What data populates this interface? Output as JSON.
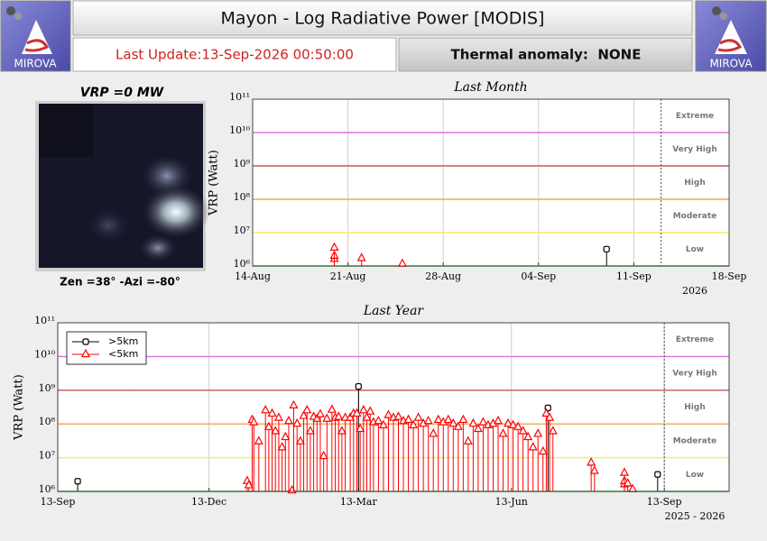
{
  "header": {
    "title": "Mayon - Log Radiative Power [MODIS]",
    "last_update": "Last Update:13-Sep-2026 00:50:00",
    "thermal_anomaly": "Thermal anomaly:  NONE",
    "logo_text": "MIROVA"
  },
  "thumbnail": {
    "vrp": "VRP =0 MW",
    "angles": "Zen =38° -Azi =-80°"
  },
  "chart_data": [
    {
      "type": "stem",
      "title": "Last Month",
      "ylabel": "VRP (Watt)",
      "xlabel": "2026",
      "log_y": true,
      "xlim": [
        "2026-08-14",
        "2026-09-18"
      ],
      "xticks": [
        {
          "value": "2026-08-14",
          "label": "14-Aug"
        },
        {
          "value": "2026-08-21",
          "label": "21-Aug"
        },
        {
          "value": "2026-08-28",
          "label": "28-Aug"
        },
        {
          "value": "2026-09-04",
          "label": "04-Sep"
        },
        {
          "value": "2026-09-11",
          "label": "11-Sep"
        },
        {
          "value": "2026-09-18",
          "label": "18-Sep"
        }
      ],
      "ylim": [
        1000000.0,
        100000000000.0
      ],
      "yticks": [
        {
          "value": 1000000.0,
          "label": "10⁶"
        },
        {
          "value": 10000000.0,
          "label": "10⁷"
        },
        {
          "value": 100000000.0,
          "label": "10⁸"
        },
        {
          "value": 1000000000.0,
          "label": "10⁹"
        },
        {
          "value": 10000000000.0,
          "label": "10¹⁰"
        },
        {
          "value": 100000000000.0,
          "label": "10¹¹"
        }
      ],
      "now": "2026-09-13",
      "levels": [
        {
          "name": "Low",
          "from": 1000000.0,
          "color": "#33cc33"
        },
        {
          "name": "Moderate",
          "from": 10000000.0,
          "color": "#f0f060"
        },
        {
          "name": "High",
          "from": 100000000.0,
          "color": "#f0a850"
        },
        {
          "name": "Very High",
          "from": 1000000000.0,
          "color": "#cc5555"
        },
        {
          "name": "Extreme",
          "from": 10000000000.0,
          "color": "#e070e0"
        }
      ],
      "series": [
        {
          "color": "#000000",
          "marker": "square",
          "x": [
            "2026-09-09"
          ],
          "values": [
            3200000.0
          ]
        },
        {
          "color": "#ff0000",
          "marker": "triangle",
          "x": [
            "2026-08-20",
            "2026-08-20",
            "2026-08-20",
            "2026-08-22",
            "2026-08-25"
          ],
          "values": [
            1600000.0,
            2000000.0,
            3500000.0,
            1700000.0,
            1150000.0
          ]
        }
      ]
    },
    {
      "type": "stem",
      "title": "Last Year",
      "ylabel": "VRP (Watt)",
      "xlabel": "2025 - 2026",
      "log_y": true,
      "legend": "upper left",
      "xlim": [
        "2025-09-13",
        "2026-10-22"
      ],
      "xticks": [
        {
          "value": "2025-09-13",
          "label": "13-Sep"
        },
        {
          "value": "2025-12-13",
          "label": "13-Dec"
        },
        {
          "value": "2026-03-13",
          "label": "13-Mar"
        },
        {
          "value": "2026-06-13",
          "label": "13-Jun"
        },
        {
          "value": "2026-09-13",
          "label": "13-Sep"
        }
      ],
      "ylim": [
        1000000.0,
        100000000000.0
      ],
      "yticks": [
        {
          "value": 1000000.0,
          "label": "10⁶"
        },
        {
          "value": 10000000.0,
          "label": "10⁷"
        },
        {
          "value": 100000000.0,
          "label": "10⁸"
        },
        {
          "value": 1000000000.0,
          "label": "10⁹"
        },
        {
          "value": 10000000000.0,
          "label": "10¹⁰"
        },
        {
          "value": 100000000000.0,
          "label": "10¹¹"
        }
      ],
      "now": "2026-09-13",
      "levels": [
        {
          "name": "Low",
          "from": 1000000.0,
          "color": "#33cc33"
        },
        {
          "name": "Moderate",
          "from": 10000000.0,
          "color": "#f0f060"
        },
        {
          "name": "High",
          "from": 100000000.0,
          "color": "#f0a850"
        },
        {
          "name": "Very High",
          "from": 1000000000.0,
          "color": "#cc5555"
        },
        {
          "name": "Extreme",
          "from": 10000000000.0,
          "color": "#e070e0"
        }
      ],
      "series": [
        {
          "name": ">5km",
          "color": "#000000",
          "marker": "square",
          "x": [
            "2025-09-25",
            "2026-03-13",
            "2026-07-05",
            "2026-09-09"
          ],
          "values": [
            2000000.0,
            1300000000.0,
            300000000.0,
            3200000.0
          ]
        },
        {
          "name": "<5km",
          "color": "#ff0000",
          "marker": "triangle",
          "x": [
            "2026-01-05",
            "2026-01-06",
            "2026-01-08",
            "2026-01-09",
            "2026-01-12",
            "2026-01-16",
            "2026-01-18",
            "2026-01-20",
            "2026-01-22",
            "2026-01-24",
            "2026-01-26",
            "2026-01-28",
            "2026-01-30",
            "2026-02-01",
            "2026-02-02",
            "2026-02-04",
            "2026-02-06",
            "2026-02-08",
            "2026-02-10",
            "2026-02-12",
            "2026-02-14",
            "2026-02-16",
            "2026-02-18",
            "2026-02-20",
            "2026-02-22",
            "2026-02-25",
            "2026-02-27",
            "2026-03-01",
            "2026-03-03",
            "2026-03-05",
            "2026-03-08",
            "2026-03-10",
            "2026-03-12",
            "2026-03-14",
            "2026-03-16",
            "2026-03-18",
            "2026-03-20",
            "2026-03-22",
            "2026-03-25",
            "2026-03-28",
            "2026-03-31",
            "2026-04-03",
            "2026-04-06",
            "2026-04-09",
            "2026-04-12",
            "2026-04-15",
            "2026-04-18",
            "2026-04-21",
            "2026-04-24",
            "2026-04-27",
            "2026-04-30",
            "2026-05-03",
            "2026-05-06",
            "2026-05-09",
            "2026-05-12",
            "2026-05-15",
            "2026-05-18",
            "2026-05-21",
            "2026-05-24",
            "2026-05-27",
            "2026-05-30",
            "2026-06-02",
            "2026-06-05",
            "2026-06-08",
            "2026-06-11",
            "2026-06-14",
            "2026-06-17",
            "2026-06-20",
            "2026-06-23",
            "2026-06-26",
            "2026-06-29",
            "2026-07-02",
            "2026-07-04",
            "2026-07-06",
            "2026-07-08",
            "2026-07-31",
            "2026-08-02",
            "2026-08-20",
            "2026-08-20",
            "2026-08-20",
            "2026-08-22",
            "2026-08-25"
          ],
          "values": [
            2000000.0,
            1500000.0,
            130000000.0,
            110000000.0,
            30000000.0,
            250000000.0,
            80000000.0,
            200000000.0,
            60000000.0,
            150000000.0,
            20000000.0,
            40000000.0,
            120000000.0,
            1050000.0,
            350000000.0,
            100000000.0,
            30000000.0,
            170000000.0,
            250000000.0,
            60000000.0,
            160000000.0,
            140000000.0,
            190000000.0,
            11000000.0,
            140000000.0,
            260000000.0,
            150000000.0,
            160000000.0,
            60000000.0,
            150000000.0,
            150000000.0,
            200000000.0,
            200000000.0,
            70000000.0,
            250000000.0,
            150000000.0,
            230000000.0,
            110000000.0,
            120000000.0,
            90000000.0,
            180000000.0,
            150000000.0,
            160000000.0,
            120000000.0,
            130000000.0,
            90000000.0,
            150000000.0,
            100000000.0,
            120000000.0,
            50000000.0,
            130000000.0,
            110000000.0,
            130000000.0,
            100000000.0,
            80000000.0,
            130000000.0,
            30000000.0,
            100000000.0,
            70000000.0,
            110000000.0,
            90000000.0,
            100000000.0,
            120000000.0,
            50000000.0,
            100000000.0,
            90000000.0,
            80000000.0,
            60000000.0,
            40000000.0,
            20000000.0,
            50000000.0,
            15000000.0,
            200000000.0,
            150000000.0,
            60000000.0,
            7000000.0,
            4000000.0,
            1600000.0,
            2000000.0,
            3500000.0,
            1700000.0,
            1150000.0
          ]
        }
      ]
    }
  ]
}
